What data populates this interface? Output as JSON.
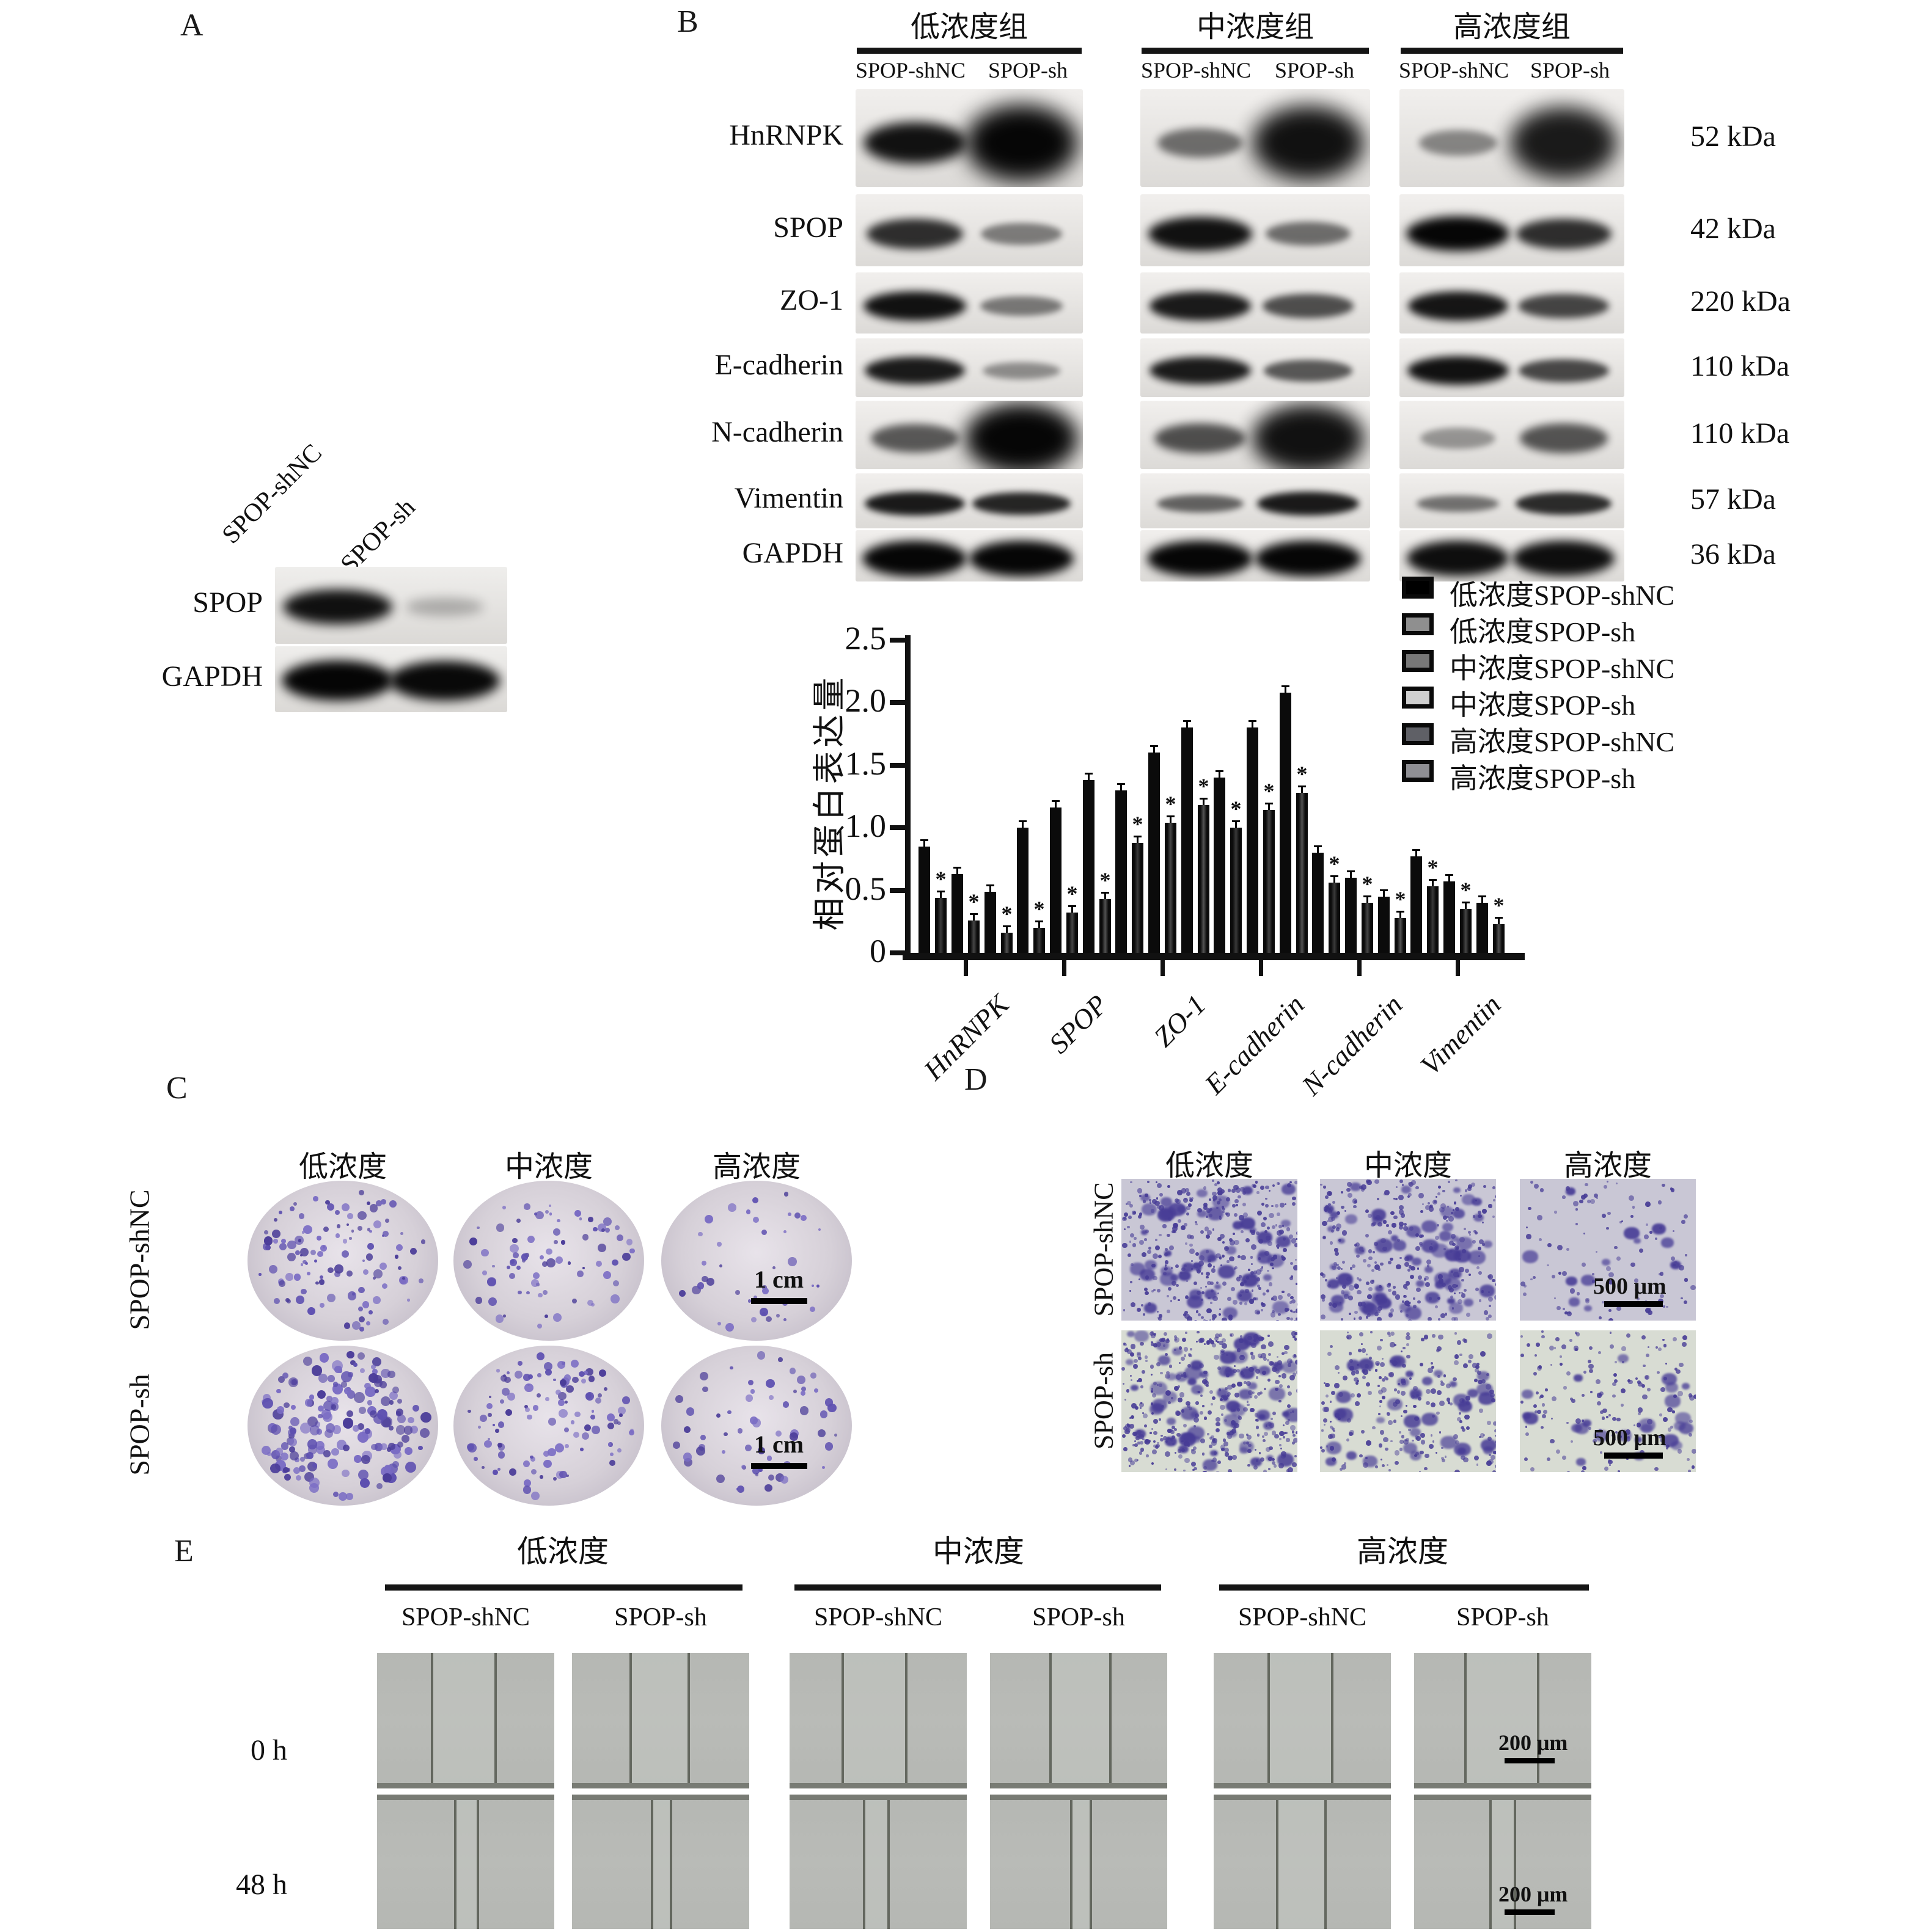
{
  "panels": {
    "A": {
      "label": "A",
      "lanes": [
        "SPOP-shNC",
        "SPOP-sh"
      ],
      "rows": [
        {
          "name": "SPOP",
          "bands": [
            0.95,
            0.18
          ]
        },
        {
          "name": "GAPDH",
          "bands": [
            1.0,
            0.98
          ]
        }
      ]
    },
    "B": {
      "label": "B",
      "groups": [
        "低浓度组",
        "中浓度组",
        "高浓度组"
      ],
      "lanes": [
        "SPOP-shNC",
        "SPOP-sh"
      ],
      "rows": [
        {
          "name": "HnRNPK",
          "kda": "52 kDa",
          "bands": [
            0.95,
            1.0,
            0.5,
            0.95,
            0.38,
            0.9
          ]
        },
        {
          "name": "SPOP",
          "kda": "42 kDa",
          "bands": [
            0.8,
            0.42,
            0.95,
            0.5,
            1.0,
            0.8
          ]
        },
        {
          "name": "ZO-1",
          "kda": "220 kDa",
          "bands": [
            0.95,
            0.45,
            0.9,
            0.65,
            0.92,
            0.7
          ]
        },
        {
          "name": "E-cadherin",
          "kda": "110 kDa",
          "bands": [
            0.9,
            0.35,
            0.9,
            0.6,
            0.95,
            0.68
          ]
        },
        {
          "name": "N-cadherin",
          "kda": "110 kDa",
          "bands": [
            0.6,
            1.0,
            0.65,
            0.95,
            0.3,
            0.62
          ]
        },
        {
          "name": "Vimentin",
          "kda": "57 kDa",
          "bands": [
            0.9,
            0.85,
            0.55,
            0.9,
            0.48,
            0.82
          ]
        },
        {
          "name": "GAPDH",
          "kda": "36 kDa",
          "bands": [
            1.0,
            1.0,
            1.0,
            1.0,
            0.96,
            0.96
          ]
        }
      ]
    },
    "C": {
      "label": "C",
      "columns": [
        "低浓度",
        "中浓度",
        "高浓度"
      ],
      "row_labels": [
        "SPOP-shNC",
        "SPOP-sh"
      ],
      "scale_bar": "1 cm",
      "colony_counts": [
        [
          115,
          78,
          40
        ],
        [
          175,
          115,
          62
        ]
      ],
      "colony_colors": [
        "#4b3d99",
        "#5e50b0",
        "#7a6cc4"
      ],
      "dish_color": "#d6d0d8"
    },
    "D": {
      "label": "D",
      "columns": [
        "低浓度",
        "中浓度",
        "高浓度"
      ],
      "row_labels": [
        "SPOP-shNC",
        "SPOP-sh"
      ],
      "scale_bar": "500 μm",
      "cell_density": [
        [
          380,
          320,
          110
        ],
        [
          430,
          260,
          165
        ]
      ],
      "cluster_density": [
        [
          48,
          58,
          12
        ],
        [
          62,
          36,
          24
        ]
      ],
      "bg_colors": [
        "#c9c7d5",
        "#d8dcd3"
      ],
      "stain_color": "#473c96"
    },
    "E": {
      "label": "E",
      "groups": [
        "低浓度",
        "中浓度",
        "高浓度"
      ],
      "lanes": [
        "SPOP-shNC",
        "SPOP-sh"
      ],
      "time_labels": [
        "0 h",
        "48 h"
      ],
      "scale_bar": "200 μm",
      "wound_edges_percent": {
        "h0": [
          [
            31,
            67
          ],
          [
            33,
            66
          ],
          [
            30,
            66
          ],
          [
            34,
            68
          ],
          [
            31,
            67
          ],
          [
            29,
            70
          ]
        ],
        "h48": [
          [
            44,
            57
          ],
          [
            45,
            56
          ],
          [
            42,
            56
          ],
          [
            46,
            57
          ],
          [
            36,
            63
          ],
          [
            43,
            57
          ]
        ]
      },
      "img_color": "#b5b7b3"
    }
  },
  "chart_data": {
    "type": "bar",
    "categories": [
      "HnRNPK",
      "SPOP",
      "ZO-1",
      "E-cadherin",
      "N-cadherin",
      "Vimentin"
    ],
    "series": [
      {
        "name": "低浓度SPOP-shNC",
        "values": [
          0.85,
          1.0,
          1.3,
          1.4,
          0.8,
          0.77
        ]
      },
      {
        "name": "低浓度SPOP-sh",
        "values": [
          0.44,
          0.2,
          0.88,
          1.0,
          0.56,
          0.53
        ]
      },
      {
        "name": "中浓度SPOP-shNC",
        "values": [
          0.63,
          1.16,
          1.6,
          1.8,
          0.6,
          0.57
        ]
      },
      {
        "name": "中浓度SPOP-sh",
        "values": [
          0.26,
          0.32,
          1.04,
          1.14,
          0.4,
          0.35
        ]
      },
      {
        "name": "高浓度SPOP-shNC",
        "values": [
          0.49,
          1.38,
          1.8,
          2.08,
          0.45,
          0.4
        ]
      },
      {
        "name": "高浓度SPOP-sh",
        "values": [
          0.16,
          0.43,
          1.18,
          1.28,
          0.28,
          0.23
        ]
      }
    ],
    "ylabel": "相对蛋白表达量",
    "xlabel": "",
    "ylim": [
      0,
      2.5
    ],
    "ytick_labels": [
      "0",
      "0.5",
      "1.0",
      "1.5",
      "2.0",
      "2.5"
    ],
    "grid": false,
    "legend_position": "upper-right",
    "sig_marker": "*",
    "sig_series_indices": [
      1,
      3,
      5
    ],
    "bar_color": "#0b0b0b",
    "sh_core_colors": [
      "#3a3a3a",
      "#464646",
      "#525252"
    ],
    "legend_fills": [
      "#000000",
      "#8f8f8f",
      "#787878",
      "#cfcfcf",
      "#5f6066",
      "#8f8f94"
    ]
  }
}
